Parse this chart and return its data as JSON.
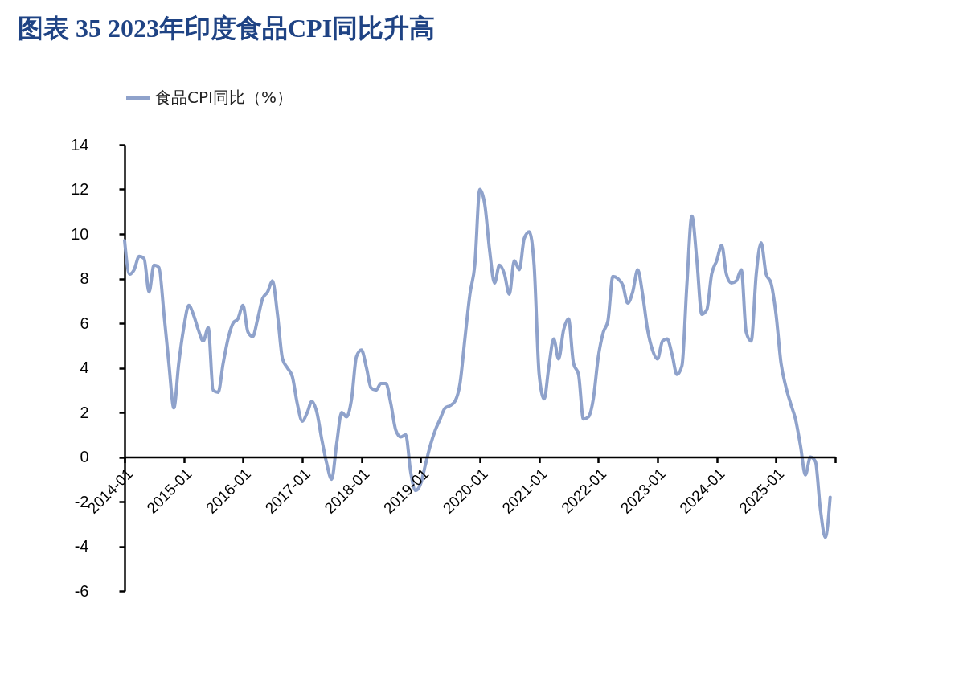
{
  "chart_data": {
    "type": "line",
    "title": "图表 35 2023年印度食品CPI同比升高",
    "x": [
      "2014-01",
      "2014-02",
      "2014-03",
      "2014-04",
      "2014-05",
      "2014-06",
      "2014-07",
      "2014-08",
      "2014-09",
      "2014-10",
      "2014-11",
      "2014-12",
      "2015-01",
      "2015-02",
      "2015-03",
      "2015-04",
      "2015-05",
      "2015-06",
      "2015-07",
      "2015-08",
      "2015-09",
      "2015-10",
      "2015-11",
      "2015-12",
      "2016-01",
      "2016-02",
      "2016-03",
      "2016-04",
      "2016-05",
      "2016-06",
      "2016-07",
      "2016-08",
      "2016-09",
      "2016-10",
      "2016-11",
      "2016-12",
      "2017-01",
      "2017-02",
      "2017-03",
      "2017-04",
      "2017-05",
      "2017-06",
      "2017-07",
      "2017-08",
      "2017-09",
      "2017-10",
      "2017-11",
      "2017-12",
      "2018-01",
      "2018-02",
      "2018-03",
      "2018-04",
      "2018-05",
      "2018-06",
      "2018-07",
      "2018-08",
      "2018-09",
      "2018-10",
      "2018-11",
      "2018-12",
      "2019-01",
      "2019-02",
      "2019-03",
      "2019-04",
      "2019-05",
      "2019-06",
      "2019-07",
      "2019-08",
      "2019-09",
      "2019-10",
      "2019-11",
      "2019-12",
      "2020-01",
      "2020-02",
      "2020-03",
      "2020-04",
      "2020-05",
      "2020-06",
      "2020-07",
      "2020-08",
      "2020-09",
      "2020-10",
      "2020-11",
      "2020-12",
      "2021-01",
      "2021-02",
      "2021-03",
      "2021-04",
      "2021-05",
      "2021-06",
      "2021-07",
      "2021-08",
      "2021-09",
      "2021-10",
      "2021-11",
      "2021-12",
      "2022-01",
      "2022-02",
      "2022-03",
      "2022-04",
      "2022-05",
      "2022-06",
      "2022-07",
      "2022-08",
      "2022-09",
      "2022-10",
      "2022-11",
      "2022-12",
      "2023-01",
      "2023-02",
      "2023-03",
      "2023-04",
      "2023-05",
      "2023-06",
      "2023-07",
      "2023-08",
      "2023-09",
      "2023-10",
      "2023-11",
      "2023-12",
      "2024-01",
      "2024-02",
      "2024-03",
      "2024-04",
      "2024-05",
      "2024-06",
      "2024-07",
      "2024-08",
      "2024-09",
      "2024-10",
      "2024-11",
      "2024-12",
      "2025-01",
      "2025-02",
      "2025-03",
      "2025-04",
      "2025-05",
      "2025-06",
      "2025-07",
      "2025-08",
      "2025-09",
      "2025-10",
      "2025-11",
      "2025-12"
    ],
    "series": [
      {
        "name": "食品CPI同比（%）",
        "color": "#8fa2cb",
        "values": [
          9.7,
          8.2,
          8.4,
          9.0,
          8.9,
          7.4,
          8.6,
          8.5,
          6.4,
          4.2,
          2.2,
          4.2,
          5.8,
          6.8,
          6.4,
          5.7,
          5.2,
          5.8,
          3.0,
          2.9,
          4.2,
          5.3,
          6.0,
          6.2,
          6.8,
          5.6,
          5.4,
          6.2,
          7.1,
          7.4,
          7.9,
          6.4,
          4.4,
          4.0,
          3.6,
          2.4,
          1.6,
          2.0,
          2.5,
          2.0,
          0.8,
          -0.3,
          -1.0,
          0.6,
          2.0,
          1.8,
          2.6,
          4.5,
          4.8,
          4.0,
          3.1,
          3.0,
          3.3,
          3.3,
          2.4,
          1.2,
          0.9,
          1.0,
          -0.7,
          -1.5,
          -1.2,
          -0.3,
          0.5,
          1.2,
          1.7,
          2.2,
          2.3,
          2.5,
          3.3,
          5.3,
          7.3,
          8.6,
          12.0,
          11.3,
          9.3,
          7.8,
          8.6,
          8.2,
          7.3,
          8.8,
          8.4,
          9.8,
          10.1,
          8.6,
          3.7,
          2.6,
          4.0,
          5.3,
          4.4,
          5.7,
          6.2,
          4.2,
          3.7,
          1.7,
          1.8,
          2.6,
          4.5,
          5.6,
          6.1,
          8.1,
          8.0,
          7.7,
          6.9,
          7.4,
          8.4,
          7.3,
          5.7,
          4.8,
          4.4,
          5.2,
          5.3,
          4.6,
          3.7,
          4.1,
          7.7,
          10.8,
          8.8,
          6.4,
          6.6,
          8.2,
          8.8,
          9.5,
          8.2,
          7.8,
          7.9,
          8.4,
          5.6,
          5.2,
          8.2,
          9.6,
          8.2,
          7.8,
          6.4,
          4.2,
          3.2,
          2.4,
          1.7,
          0.5,
          -0.8,
          0.0,
          -0.2,
          -2.3,
          -3.6,
          -1.8
        ]
      }
    ],
    "xlim": [
      "2014-01",
      "2026-01"
    ],
    "xticks": [
      "2014-01",
      "2015-01",
      "2016-01",
      "2017-01",
      "2018-01",
      "2019-01",
      "2020-01",
      "2021-01",
      "2022-01",
      "2023-01",
      "2024-01",
      "2025-01",
      {
        "value": "2026-01",
        "label": null
      }
    ],
    "ylim": [
      -6,
      14
    ],
    "yticks": [
      -6,
      -4,
      -2,
      0,
      2,
      4,
      6,
      8,
      10,
      12,
      14
    ],
    "grid": false,
    "legend": "top",
    "marker": "none",
    "line_style": "solid"
  }
}
